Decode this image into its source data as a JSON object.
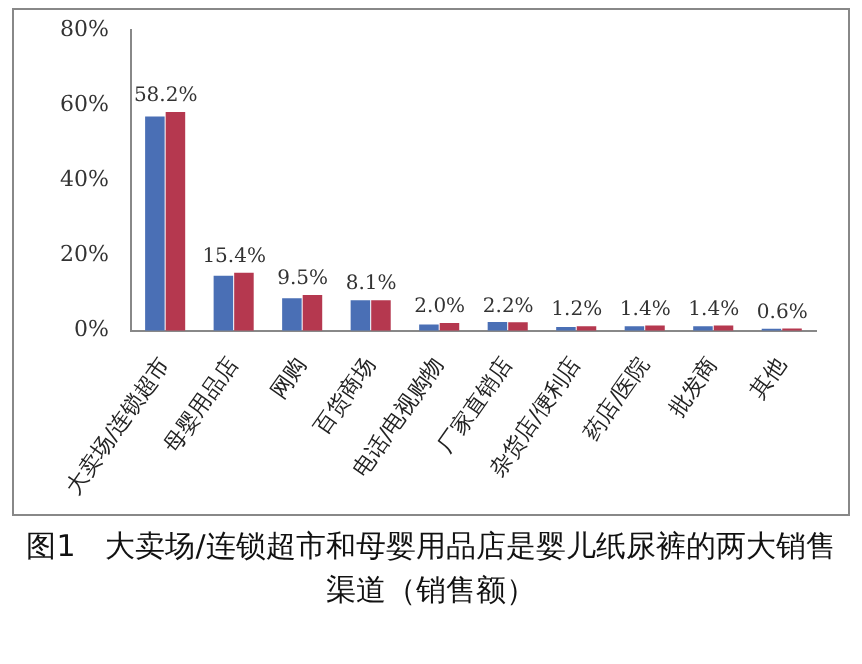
{
  "chart_data": {
    "type": "bar",
    "title": "图1　大卖场/连锁超市和母婴用品店是婴儿纸尿裤的两大销售渠道（销售额）",
    "categories": [
      "大卖场/连锁超市",
      "母婴用品店",
      "网购",
      "百货商场",
      "电话/电视购物",
      "厂家直销店",
      "杂货店/便利店",
      "药店/医院",
      "批发商",
      "其他"
    ],
    "series": [
      {
        "color": "#4a6fb5",
        "values": [
          57.0,
          14.6,
          8.6,
          8.1,
          1.6,
          2.3,
          1.0,
          1.2,
          1.2,
          0.5
        ]
      },
      {
        "color": "#b5384f",
        "values": [
          58.2,
          15.4,
          9.5,
          8.1,
          2.0,
          2.2,
          1.2,
          1.4,
          1.4,
          0.6
        ],
        "value_labels": [
          "58.2%",
          "15.4%",
          "9.5%",
          "8.1%",
          "2.0%",
          "2.2%",
          "1.2%",
          "1.4%",
          "1.4%",
          "0.6%"
        ]
      }
    ],
    "ylim": [
      0,
      80
    ],
    "yticks": [
      {
        "value": 0,
        "label": "0%"
      },
      {
        "value": 20,
        "label": "20%"
      },
      {
        "value": 40,
        "label": "40%"
      },
      {
        "value": 60,
        "label": "60%"
      },
      {
        "value": 80,
        "label": "80%"
      }
    ],
    "grid": false,
    "legend": false
  }
}
